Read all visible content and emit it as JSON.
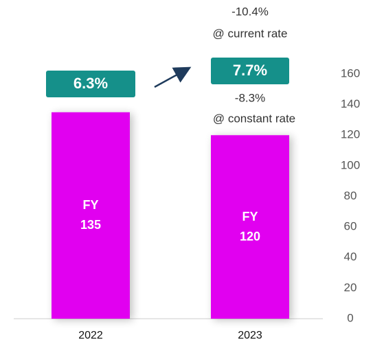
{
  "chart_data": {
    "type": "bar",
    "categories": [
      "2022",
      "2023"
    ],
    "values": [
      135,
      120
    ],
    "value_labels": [
      [
        "FY",
        "135"
      ],
      [
        "FY",
        "120"
      ]
    ],
    "color": "#e100f0",
    "ylim": [
      0,
      160
    ],
    "yticks": [
      0,
      20,
      40,
      60,
      80,
      100,
      120,
      140,
      160
    ],
    "y_axis_side": "right",
    "badges": [
      "6.3%",
      "7.7%"
    ],
    "badge_color": "#15908a",
    "annotations": [
      "-10.4%",
      "@ current rate",
      "-8.3%",
      "@ constant rate"
    ]
  }
}
